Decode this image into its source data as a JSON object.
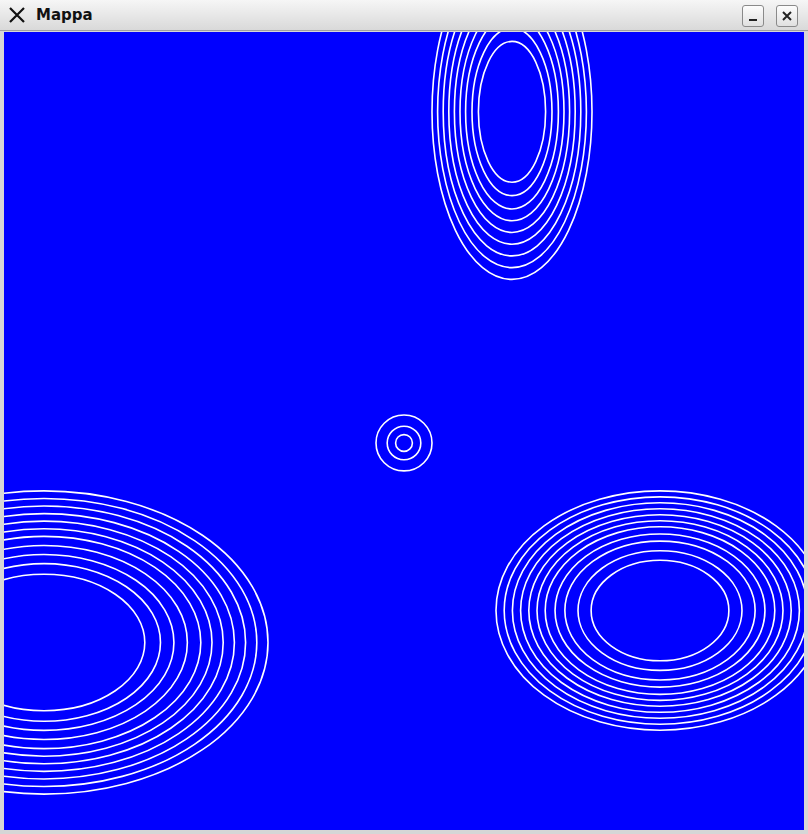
{
  "window": {
    "title": "Mappa"
  },
  "chart_data": {
    "type": "scatter",
    "xlim": [
      -1,
      1
    ],
    "ylim": [
      -1,
      1
    ],
    "tick_labels": false,
    "grid": false,
    "color": "#0000ff",
    "islands": [
      {
        "center": [
          -0.9,
          -0.53
        ],
        "radii": [
          0.56,
          0.38
        ],
        "color": "#ffffff",
        "rings": [
          1.0,
          0.95,
          0.9,
          0.85,
          0.8,
          0.75,
          0.7,
          0.64,
          0.58,
          0.52,
          0.45
        ]
      },
      {
        "center": [
          0.64,
          -0.45
        ],
        "radii": [
          0.41,
          0.3
        ],
        "color": "#ffffff",
        "rings": [
          1.0,
          0.95,
          0.9,
          0.85,
          0.8,
          0.75,
          0.7,
          0.64,
          0.58,
          0.5,
          0.42
        ]
      },
      {
        "center": [
          0.27,
          0.8
        ],
        "radii": [
          0.2,
          0.42
        ],
        "color": "#ffffff",
        "rings": [
          1.0,
          0.93,
          0.86,
          0.79,
          0.72,
          0.65,
          0.58,
          0.5,
          0.42
        ]
      },
      {
        "center": [
          0.0,
          -0.03
        ],
        "radii": [
          0.07,
          0.07
        ],
        "color": "#ffffff",
        "rings": [
          1.0,
          0.6,
          0.3
        ]
      }
    ]
  }
}
